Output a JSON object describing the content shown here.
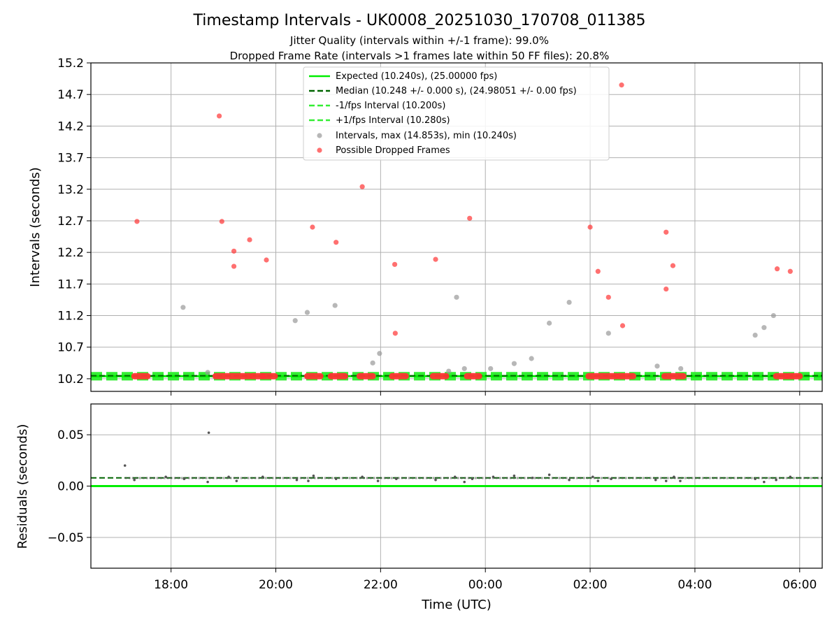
{
  "chart_data": [
    {
      "type": "scatter",
      "title": "Timestamp Intervals - UK0008_20251030_170708_011385",
      "subtitle_1": "Jitter Quality (intervals within +/-1 frame): 99.0%",
      "subtitle_2": "Dropped Frame Rate (intervals >1 frames late within 50 FF files): 20.8%",
      "xlabel": "",
      "ylabel": "Intervals (seconds)",
      "xlim_hours": [
        16.47,
        30.43
      ],
      "ylim": [
        10.0,
        15.2
      ],
      "yticks": [
        "10.2",
        "10.7",
        "11.2",
        "11.7",
        "12.2",
        "12.7",
        "13.2",
        "13.7",
        "14.2",
        "14.7",
        "15.2"
      ],
      "grid": true,
      "legend_position": "top-center",
      "legend": [
        "Expected (10.240s), (25.00000 fps)",
        "Median (10.248 +/- 0.000 s), (24.98051 +/- 0.00 fps)",
        "-1/fps Interval (10.200s)",
        "+1/fps Interval (10.280s)",
        "Intervals, max (14.853s), min (10.240s)",
        "Possible Dropped Frames"
      ],
      "expected": 10.24,
      "median": 10.248,
      "minus_fps": 10.2,
      "plus_fps": 10.28,
      "dropped_points": [
        {
          "x": 17.35,
          "y": 12.69
        },
        {
          "x": 18.92,
          "y": 14.36
        },
        {
          "x": 18.97,
          "y": 12.69
        },
        {
          "x": 19.2,
          "y": 12.22
        },
        {
          "x": 19.2,
          "y": 11.98
        },
        {
          "x": 19.5,
          "y": 12.4
        },
        {
          "x": 19.82,
          "y": 12.08
        },
        {
          "x": 20.7,
          "y": 12.6
        },
        {
          "x": 21.15,
          "y": 12.36
        },
        {
          "x": 21.65,
          "y": 13.24
        },
        {
          "x": 22.27,
          "y": 12.01
        },
        {
          "x": 22.28,
          "y": 10.92
        },
        {
          "x": 23.05,
          "y": 12.09
        },
        {
          "x": 23.7,
          "y": 12.74
        },
        {
          "x": 26.0,
          "y": 12.6
        },
        {
          "x": 26.15,
          "y": 11.9
        },
        {
          "x": 26.35,
          "y": 11.49
        },
        {
          "x": 26.62,
          "y": 11.04
        },
        {
          "x": 26.6,
          "y": 14.85
        },
        {
          "x": 27.45,
          "y": 12.52
        },
        {
          "x": 27.45,
          "y": 11.62
        },
        {
          "x": 27.58,
          "y": 11.99
        },
        {
          "x": 29.57,
          "y": 11.94
        },
        {
          "x": 29.82,
          "y": 11.9
        }
      ],
      "dropped_clusters": [
        [
          17.3,
          17.55
        ],
        [
          18.85,
          19.5
        ],
        [
          19.55,
          19.75
        ],
        [
          19.76,
          19.98
        ],
        [
          20.6,
          20.85
        ],
        [
          21.05,
          21.32
        ],
        [
          21.6,
          21.85
        ],
        [
          22.22,
          22.48
        ],
        [
          23.0,
          23.25
        ],
        [
          23.65,
          23.88
        ],
        [
          25.97,
          26.5
        ],
        [
          26.55,
          26.82
        ],
        [
          27.42,
          27.78
        ],
        [
          29.55,
          29.75
        ],
        [
          29.78,
          30.0
        ]
      ],
      "interval_points": [
        {
          "x": 18.23,
          "y": 11.33
        },
        {
          "x": 18.7,
          "y": 10.3
        },
        {
          "x": 20.37,
          "y": 11.12
        },
        {
          "x": 20.6,
          "y": 11.25
        },
        {
          "x": 21.13,
          "y": 11.36
        },
        {
          "x": 21.85,
          "y": 10.45
        },
        {
          "x": 21.98,
          "y": 10.6
        },
        {
          "x": 23.3,
          "y": 10.32
        },
        {
          "x": 23.45,
          "y": 11.49
        },
        {
          "x": 23.6,
          "y": 10.36
        },
        {
          "x": 24.1,
          "y": 10.36
        },
        {
          "x": 24.55,
          "y": 10.44
        },
        {
          "x": 24.88,
          "y": 10.52
        },
        {
          "x": 25.22,
          "y": 11.08
        },
        {
          "x": 25.6,
          "y": 11.41
        },
        {
          "x": 26.35,
          "y": 10.92
        },
        {
          "x": 27.28,
          "y": 10.4
        },
        {
          "x": 27.73,
          "y": 10.36
        },
        {
          "x": 29.15,
          "y": 10.89
        },
        {
          "x": 29.32,
          "y": 11.01
        },
        {
          "x": 29.5,
          "y": 11.2
        }
      ]
    },
    {
      "type": "scatter",
      "xlabel": "Time (UTC)",
      "ylabel": "Residuals (seconds)",
      "ylim": [
        -0.08,
        0.08
      ],
      "yticks": [
        "−0.05",
        "0.00",
        "0.05"
      ],
      "xticks": [
        "18:00",
        "20:00",
        "22:00",
        "00:00",
        "02:00",
        "04:00",
        "06:00"
      ],
      "grid": true,
      "expected_residual": 0.0,
      "median_residual": 0.008,
      "outliers": [
        {
          "x": 17.12,
          "y": 0.02
        },
        {
          "x": 18.72,
          "y": 0.052
        }
      ],
      "residual_points": [
        {
          "x": 17.3,
          "y": 0.006
        },
        {
          "x": 17.9,
          "y": 0.009
        },
        {
          "x": 18.25,
          "y": 0.007
        },
        {
          "x": 18.7,
          "y": 0.004
        },
        {
          "x": 19.1,
          "y": 0.009
        },
        {
          "x": 19.25,
          "y": 0.005
        },
        {
          "x": 19.75,
          "y": 0.009
        },
        {
          "x": 20.4,
          "y": 0.006
        },
        {
          "x": 20.62,
          "y": 0.005
        },
        {
          "x": 20.72,
          "y": 0.01
        },
        {
          "x": 21.15,
          "y": 0.007
        },
        {
          "x": 21.65,
          "y": 0.009
        },
        {
          "x": 21.95,
          "y": 0.005
        },
        {
          "x": 22.3,
          "y": 0.007
        },
        {
          "x": 23.05,
          "y": 0.006
        },
        {
          "x": 23.42,
          "y": 0.009
        },
        {
          "x": 23.6,
          "y": 0.004
        },
        {
          "x": 23.75,
          "y": 0.007
        },
        {
          "x": 24.15,
          "y": 0.009
        },
        {
          "x": 24.55,
          "y": 0.01
        },
        {
          "x": 24.9,
          "y": 0.008
        },
        {
          "x": 25.22,
          "y": 0.011
        },
        {
          "x": 25.6,
          "y": 0.006
        },
        {
          "x": 26.05,
          "y": 0.009
        },
        {
          "x": 26.15,
          "y": 0.005
        },
        {
          "x": 26.4,
          "y": 0.007
        },
        {
          "x": 27.25,
          "y": 0.006
        },
        {
          "x": 27.45,
          "y": 0.005
        },
        {
          "x": 27.6,
          "y": 0.009
        },
        {
          "x": 27.72,
          "y": 0.005
        },
        {
          "x": 29.15,
          "y": 0.007
        },
        {
          "x": 29.32,
          "y": 0.004
        },
        {
          "x": 29.55,
          "y": 0.006
        },
        {
          "x": 29.82,
          "y": 0.009
        }
      ]
    }
  ],
  "colors": {
    "expected": "#00ee00",
    "median": "#006400",
    "fps_band": "#33ee33",
    "dropped": "#ff3333",
    "interval": "#999999",
    "residual": "#555555",
    "grid": "#b0b0b0"
  }
}
